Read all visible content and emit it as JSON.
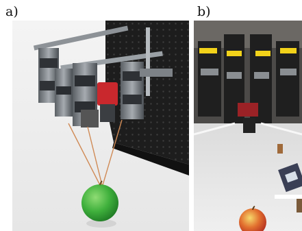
{
  "figure": {
    "panel_a": {
      "label": "a)"
    },
    "panel_b": {
      "label": "b)"
    }
  }
}
